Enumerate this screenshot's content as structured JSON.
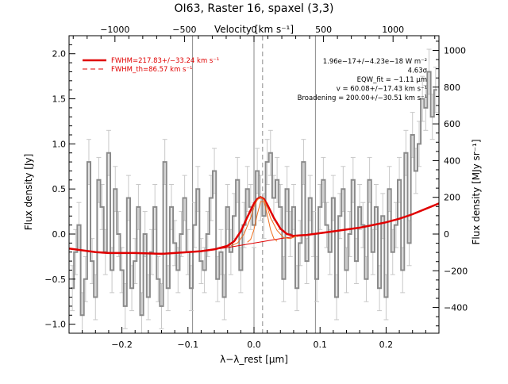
{
  "chart_data": {
    "type": "line",
    "title": "OI63, Raster 16, spaxel (3,3)",
    "xlabel": "λ−λ_rest [μm]",
    "ylabel": "Flux density [Jy]",
    "x2label": "Velocity [km s⁻¹]",
    "y2label": "Flux density [MJy sr⁻¹]",
    "xlim": [
      -0.28,
      0.28
    ],
    "ylim": [
      -1.1,
      2.2
    ],
    "y2lim": [
      -540,
      1080
    ],
    "x_ticks": [
      -0.2,
      -0.1,
      0.0,
      0.1,
      0.2
    ],
    "x_tick_labels": [
      "−0.2",
      "−0.1",
      "0.0",
      "0.1",
      "0.2"
    ],
    "y_ticks": [
      -1.0,
      -0.5,
      0.0,
      0.5,
      1.0,
      1.5,
      2.0
    ],
    "y_tick_labels": [
      "−1.0",
      "−0.5",
      "0.0",
      "0.5",
      "1.0",
      "1.5",
      "2.0"
    ],
    "x2_ticks": [
      -1000,
      -500,
      0,
      500,
      1000
    ],
    "x2_tick_labels": [
      "−1000",
      "−500",
      "0",
      "500",
      "1000"
    ],
    "x2_scale_km_s_per_um": 4750,
    "y2_ticks": [
      -400,
      -200,
      0,
      200,
      400,
      600,
      800,
      1000
    ],
    "y2_tick_labels": [
      "−400",
      "−200",
      "0",
      "200",
      "400",
      "600",
      "800",
      "1000"
    ],
    "vertical_solid_lines_x": [
      -0.093,
      0.0,
      0.093
    ],
    "vertical_dashed_line_x": 0.013,
    "legend": [
      {
        "label": "FWHM=217.83+/−33.24 km s⁻¹",
        "style": "solid",
        "color": "#e00000"
      },
      {
        "label": "FWHM_th=86.57 km s⁻¹",
        "style": "dashed",
        "color": "#e00000"
      }
    ],
    "annotations": [
      "1.96e−17+/−4.23e−18 W m⁻²",
      "4.63σ",
      "EQW_fit = −1.11 μm",
      "v = 60.08+/−17.43 km s⁻¹",
      "Broadening = 200.00+/−30.51 km s⁻¹"
    ],
    "series": [
      {
        "name": "data",
        "color": "#8a8a8a",
        "style": "step",
        "x": [
          -0.275,
          -0.27,
          -0.265,
          -0.26,
          -0.255,
          -0.25,
          -0.245,
          -0.24,
          -0.235,
          -0.23,
          -0.225,
          -0.22,
          -0.215,
          -0.21,
          -0.205,
          -0.2,
          -0.195,
          -0.19,
          -0.185,
          -0.18,
          -0.175,
          -0.17,
          -0.165,
          -0.16,
          -0.155,
          -0.15,
          -0.145,
          -0.14,
          -0.135,
          -0.13,
          -0.125,
          -0.12,
          -0.115,
          -0.11,
          -0.105,
          -0.1,
          -0.095,
          -0.09,
          -0.085,
          -0.08,
          -0.075,
          -0.07,
          -0.065,
          -0.06,
          -0.055,
          -0.05,
          -0.045,
          -0.04,
          -0.035,
          -0.03,
          -0.025,
          -0.02,
          -0.015,
          -0.01,
          -0.005,
          0.0,
          0.005,
          0.01,
          0.015,
          0.02,
          0.025,
          0.03,
          0.035,
          0.04,
          0.045,
          0.05,
          0.055,
          0.06,
          0.065,
          0.07,
          0.075,
          0.08,
          0.085,
          0.09,
          0.095,
          0.1,
          0.105,
          0.11,
          0.115,
          0.12,
          0.125,
          0.13,
          0.135,
          0.14,
          0.145,
          0.15,
          0.155,
          0.16,
          0.165,
          0.17,
          0.175,
          0.18,
          0.185,
          0.19,
          0.195,
          0.2,
          0.205,
          0.21,
          0.215,
          0.22,
          0.225,
          0.23,
          0.235,
          0.24,
          0.245,
          0.25,
          0.255,
          0.26,
          0.265,
          0.27,
          0.275
        ],
        "y": [
          -0.6,
          -0.2,
          0.1,
          -0.9,
          -0.5,
          0.8,
          -0.3,
          -0.7,
          0.6,
          0.3,
          -0.2,
          0.9,
          -0.4,
          0.5,
          0.0,
          -0.4,
          -0.8,
          0.4,
          -0.6,
          -0.3,
          0.3,
          -0.9,
          0.0,
          -0.7,
          -0.2,
          0.3,
          -0.5,
          -0.8,
          0.8,
          -0.6,
          0.3,
          -0.1,
          -0.4,
          0.0,
          0.4,
          -0.2,
          -0.6,
          0.1,
          0.5,
          -0.3,
          -0.4,
          0.0,
          0.4,
          0.7,
          -0.5,
          -0.2,
          -0.7,
          0.3,
          -0.2,
          0.2,
          0.6,
          -0.4,
          0.1,
          0.5,
          0.3,
          0.1,
          0.7,
          0.4,
          0.2,
          0.8,
          0.9,
          0.4,
          0.6,
          0.3,
          -0.5,
          0.5,
          0.0,
          0.3,
          -0.6,
          -0.1,
          0.8,
          -0.3,
          0.4,
          0.0,
          -0.5,
          0.3,
          0.6,
          0.1,
          -0.2,
          0.4,
          -0.7,
          0.2,
          0.5,
          -0.4,
          0.0,
          0.6,
          -0.3,
          0.3,
          0.1,
          -0.5,
          0.6,
          -0.2,
          0.3,
          -0.6,
          0.2,
          -0.7,
          0.5,
          -0.2,
          0.1,
          0.6,
          -0.4,
          0.9,
          -0.1,
          1.1,
          0.7,
          1.0,
          1.5,
          1.4,
          1.8,
          1.3,
          1.6
        ],
        "err": [
          0.25,
          0.25,
          0.25,
          0.25,
          0.25,
          0.25,
          0.25,
          0.25,
          0.25,
          0.25,
          0.25,
          0.25,
          0.25,
          0.25,
          0.25,
          0.25,
          0.25,
          0.25,
          0.25,
          0.25,
          0.25,
          0.25,
          0.25,
          0.25,
          0.25,
          0.25,
          0.25,
          0.25,
          0.25,
          0.25,
          0.25,
          0.25,
          0.25,
          0.25,
          0.25,
          0.25,
          0.25,
          0.25,
          0.25,
          0.25,
          0.25,
          0.25,
          0.25,
          0.25,
          0.25,
          0.25,
          0.25,
          0.25,
          0.25,
          0.25,
          0.25,
          0.25,
          0.25,
          0.25,
          0.25,
          0.25,
          0.25,
          0.25,
          0.25,
          0.25,
          0.25,
          0.25,
          0.25,
          0.25,
          0.25,
          0.25,
          0.25,
          0.25,
          0.25,
          0.25,
          0.25,
          0.25,
          0.25,
          0.25,
          0.25,
          0.25,
          0.25,
          0.25,
          0.25,
          0.25,
          0.25,
          0.25,
          0.25,
          0.25,
          0.25,
          0.25,
          0.25,
          0.25,
          0.25,
          0.25,
          0.25,
          0.25,
          0.25,
          0.25,
          0.25,
          0.25,
          0.25,
          0.25,
          0.25,
          0.25,
          0.25,
          0.25,
          0.25,
          0.25,
          0.25,
          0.25,
          0.25,
          0.25,
          0.25,
          0.25,
          0.25
        ]
      },
      {
        "name": "total fit",
        "color": "#e00000",
        "style": "solid",
        "x": [
          -0.28,
          -0.26,
          -0.24,
          -0.22,
          -0.2,
          -0.18,
          -0.16,
          -0.14,
          -0.12,
          -0.1,
          -0.08,
          -0.06,
          -0.04,
          -0.03,
          -0.02,
          -0.01,
          0.0,
          0.005,
          0.01,
          0.015,
          0.02,
          0.03,
          0.04,
          0.05,
          0.06,
          0.08,
          0.1,
          0.12,
          0.14,
          0.16,
          0.18,
          0.2,
          0.22,
          0.24,
          0.26,
          0.28
        ],
        "y": [
          -0.16,
          -0.18,
          -0.2,
          -0.21,
          -0.21,
          -0.21,
          -0.215,
          -0.22,
          -0.21,
          -0.2,
          -0.19,
          -0.17,
          -0.13,
          -0.08,
          0.03,
          0.19,
          0.34,
          0.39,
          0.41,
          0.39,
          0.33,
          0.18,
          0.06,
          0.0,
          -0.02,
          -0.01,
          0.01,
          0.03,
          0.05,
          0.07,
          0.1,
          0.13,
          0.17,
          0.22,
          0.28,
          0.34
        ]
      },
      {
        "name": "continuum",
        "color": "#e00000",
        "style": "thin",
        "x": [
          -0.28,
          -0.24,
          -0.2,
          -0.16,
          -0.12,
          -0.08,
          -0.04,
          0.0,
          0.04,
          0.08,
          0.12,
          0.16,
          0.2,
          0.24,
          0.28
        ],
        "y": [
          -0.16,
          -0.2,
          -0.21,
          -0.215,
          -0.21,
          -0.19,
          -0.15,
          -0.1,
          -0.05,
          -0.01,
          0.03,
          0.07,
          0.13,
          0.22,
          0.34
        ]
      },
      {
        "name": "line profile",
        "color": "#f07020",
        "style": "thin",
        "x": [
          -0.035,
          -0.025,
          -0.015,
          -0.005,
          0.0,
          0.005,
          0.01,
          0.015,
          0.02,
          0.025,
          0.035,
          0.045,
          0.055,
          0.065
        ],
        "y": [
          -0.13,
          -0.1,
          0.0,
          0.18,
          0.3,
          0.38,
          0.41,
          0.38,
          0.3,
          0.18,
          0.04,
          -0.04,
          -0.05,
          -0.02
        ]
      },
      {
        "name": "thermal profile",
        "color": "#f07020",
        "style": "thin",
        "x": [
          -0.01,
          -0.005,
          0.0,
          0.005,
          0.01,
          0.015,
          0.02,
          0.025,
          0.03,
          0.035
        ],
        "y": [
          -0.09,
          -0.06,
          0.05,
          0.22,
          0.36,
          0.36,
          0.22,
          0.05,
          -0.05,
          -0.08
        ]
      }
    ]
  }
}
